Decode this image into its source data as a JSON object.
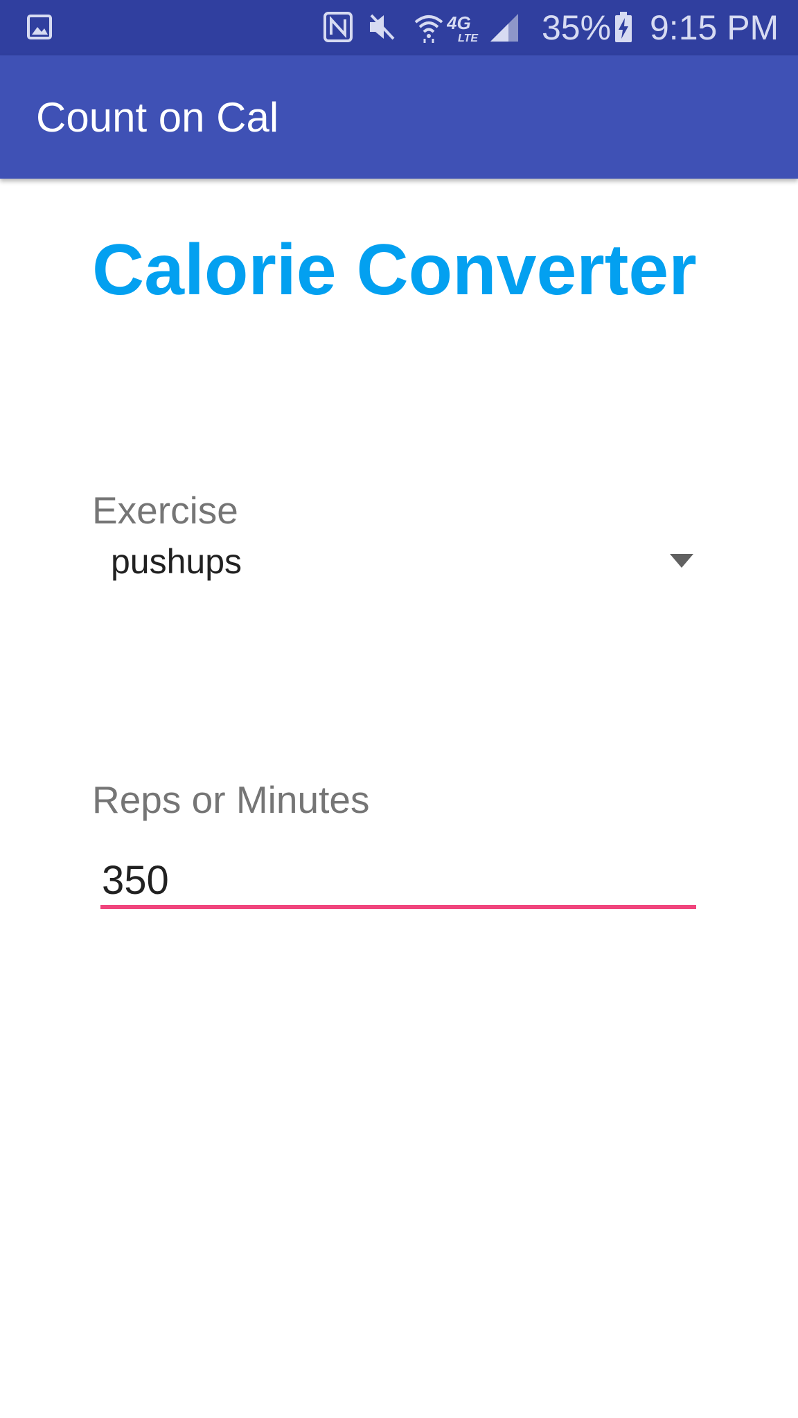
{
  "status_bar": {
    "icons": [
      "gallery-icon",
      "nfc-icon",
      "mute-icon",
      "wifi-icon",
      "4g-lte-icon",
      "signal-icon",
      "battery-charging-icon"
    ],
    "battery_percent": "35%",
    "time": "9:15 PM"
  },
  "app_bar": {
    "title": "Count on Cal"
  },
  "main": {
    "headline": "Calorie Converter",
    "exercise": {
      "label": "Exercise",
      "selected": "pushups"
    },
    "reps": {
      "label": "Reps or Minutes",
      "value": "350"
    }
  },
  "colors": {
    "status_bar": "#303f9f",
    "app_bar": "#3f51b5",
    "headline": "#03a0f0",
    "accent_underline": "#f0457d",
    "label": "#757575"
  }
}
